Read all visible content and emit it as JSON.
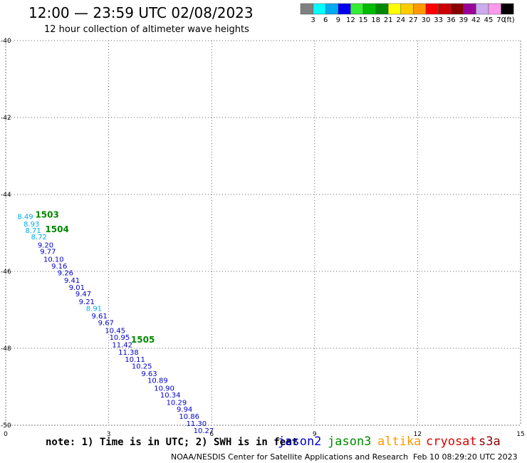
{
  "title": "12:00 — 23:59 UTC 02/08/2023",
  "subtitle": "12 hour collection of altimeter wave heights",
  "colorbar": {
    "colors": [
      "#808080",
      "#00ffff",
      "#00aaee",
      "#0000ee",
      "#33ee33",
      "#00bb00",
      "#008800",
      "#ffff00",
      "#ffcc00",
      "#ff9900",
      "#ff0000",
      "#cc0000",
      "#880000",
      "#990099",
      "#ccaaee",
      "#ff99ee",
      "#000000"
    ],
    "labels": [
      "3",
      "6",
      "9",
      "12",
      "15",
      "18",
      "21",
      "24",
      "27",
      "30",
      "33",
      "36",
      "39",
      "42",
      "45",
      "70"
    ],
    "unit": "(ft)"
  },
  "note": "note: 1) Time is in UTC; 2) SWH is in feet",
  "satellites": [
    {
      "name": "jason2",
      "color": "#0000cc"
    },
    {
      "name": "jason3",
      "color": "#008800"
    },
    {
      "name": "altika",
      "color": "#ff9900"
    },
    {
      "name": "cryosat",
      "color": "#dd0000"
    },
    {
      "name": "s3a",
      "color": "#880000"
    }
  ],
  "footer_left": "NOAA/NESDIS Center for Satellite Applications and Research",
  "footer_right": "Feb 10 08:29:20 UTC 2023",
  "chart_data": {
    "type": "scatter",
    "title": "12:00 — 23:59 UTC 02/08/2023",
    "subtitle": "12 hour collection of altimeter wave heights",
    "xlim": [
      0,
      15
    ],
    "ylim": [
      -50,
      -40
    ],
    "x_ticks": [
      0,
      3,
      6,
      9,
      12,
      15
    ],
    "x_tick_labels": [
      "0",
      "3",
      "6",
      "9",
      "12",
      "15"
    ],
    "y_ticks": [
      -40,
      -42,
      -44,
      -46,
      -48,
      -50
    ],
    "y_tick_labels": [
      "-40",
      "-42",
      "-44",
      "-46",
      "-48",
      "-50"
    ],
    "grid": true,
    "time_labels": [
      {
        "label": "1503",
        "x": 0.86,
        "y": -44.6
      },
      {
        "label": "1504",
        "x": 1.15,
        "y": -44.98
      },
      {
        "label": "1505",
        "x": 3.65,
        "y": -47.85
      }
    ],
    "points": [
      {
        "x": 0.34,
        "y": -44.64,
        "swh": 8.49,
        "color": "#00aaee"
      },
      {
        "x": 0.52,
        "y": -44.83,
        "swh": 8.93,
        "color": "#00aaee"
      },
      {
        "x": 0.57,
        "y": -45.0,
        "swh": 8.71,
        "color": "#00aaee"
      },
      {
        "x": 0.74,
        "y": -45.17,
        "swh": 8.72,
        "color": "#00aaee"
      },
      {
        "x": 0.93,
        "y": -45.38,
        "swh": 9.2,
        "color": "#0000cc"
      },
      {
        "x": 1.0,
        "y": -45.55,
        "swh": 9.77,
        "color": "#0000cc"
      },
      {
        "x": 1.1,
        "y": -45.75,
        "swh": 10.1,
        "color": "#0000cc"
      },
      {
        "x": 1.33,
        "y": -45.93,
        "swh": 9.16,
        "color": "#0000cc"
      },
      {
        "x": 1.51,
        "y": -46.1,
        "swh": 9.26,
        "color": "#0000cc"
      },
      {
        "x": 1.7,
        "y": -46.3,
        "swh": 9.41,
        "color": "#0000cc"
      },
      {
        "x": 1.84,
        "y": -46.48,
        "swh": 9.01,
        "color": "#0000cc"
      },
      {
        "x": 2.03,
        "y": -46.65,
        "swh": 9.47,
        "color": "#0000cc"
      },
      {
        "x": 2.13,
        "y": -46.85,
        "swh": 9.21,
        "color": "#0000cc"
      },
      {
        "x": 2.34,
        "y": -47.03,
        "swh": 8.91,
        "color": "#00aaee"
      },
      {
        "x": 2.5,
        "y": -47.22,
        "swh": 9.61,
        "color": "#0000cc"
      },
      {
        "x": 2.69,
        "y": -47.4,
        "swh": 9.67,
        "color": "#0000cc"
      },
      {
        "x": 2.89,
        "y": -47.6,
        "swh": 10.45,
        "color": "#0000cc"
      },
      {
        "x": 3.02,
        "y": -47.78,
        "swh": 10.95,
        "color": "#0000cc"
      },
      {
        "x": 3.1,
        "y": -47.97,
        "swh": 11.42,
        "color": "#0000cc"
      },
      {
        "x": 3.28,
        "y": -48.17,
        "swh": 11.38,
        "color": "#0000cc"
      },
      {
        "x": 3.47,
        "y": -48.35,
        "swh": 10.11,
        "color": "#0000cc"
      },
      {
        "x": 3.67,
        "y": -48.53,
        "swh": 10.25,
        "color": "#0000cc"
      },
      {
        "x": 3.95,
        "y": -48.72,
        "swh": 9.63,
        "color": "#0000cc"
      },
      {
        "x": 4.13,
        "y": -48.9,
        "swh": 10.89,
        "color": "#0000cc"
      },
      {
        "x": 4.32,
        "y": -49.1,
        "swh": 10.9,
        "color": "#0000cc"
      },
      {
        "x": 4.5,
        "y": -49.28,
        "swh": 10.34,
        "color": "#0000cc"
      },
      {
        "x": 4.68,
        "y": -49.47,
        "swh": 10.29,
        "color": "#0000cc"
      },
      {
        "x": 4.98,
        "y": -49.65,
        "swh": 9.94,
        "color": "#0000cc"
      },
      {
        "x": 5.05,
        "y": -49.83,
        "swh": 10.86,
        "color": "#0000cc"
      },
      {
        "x": 5.26,
        "y": -50.02,
        "swh": 11.3,
        "color": "#0000cc"
      },
      {
        "x": 5.47,
        "y": -50.2,
        "swh": 10.27,
        "color": "#0000cc"
      }
    ]
  }
}
